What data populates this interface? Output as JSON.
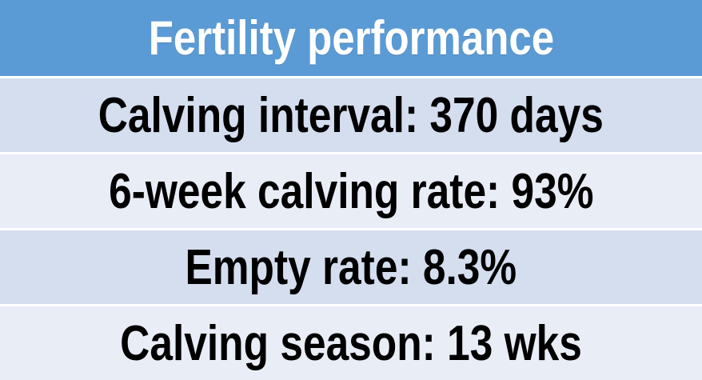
{
  "table": {
    "title": "Fertility performance",
    "rows": [
      {
        "text": "Calving interval: 370 days",
        "label": "Calving interval",
        "value": "370 days"
      },
      {
        "text": "6-week calving rate: 93%",
        "label": "6-week calving rate",
        "value": "93%"
      },
      {
        "text": "Empty rate: 8.3%",
        "label": "Empty rate",
        "value": "8.3%"
      },
      {
        "text": "Calving season: 13 wks",
        "label": "Calving season",
        "value": "13 wks"
      }
    ]
  },
  "chart_data": {
    "type": "table",
    "title": "Fertility performance",
    "columns": [
      "metric",
      "value"
    ],
    "rows": [
      {
        "metric": "Calving interval",
        "value": "370 days"
      },
      {
        "metric": "6-week calving rate",
        "value": "93%"
      },
      {
        "metric": "Empty rate",
        "value": "8.3%"
      },
      {
        "metric": "Calving season",
        "value": "13 wks"
      }
    ],
    "layout": {
      "header_position": "top",
      "banded_rows": true
    }
  },
  "colors": {
    "header_bg": "#5B9BD5",
    "row_band_dark": "#D4DEEF",
    "row_band_light": "#E9EDF6",
    "separator": "#FFFFFF",
    "header_text": "#FFFFFF",
    "row_text": "#000000"
  }
}
